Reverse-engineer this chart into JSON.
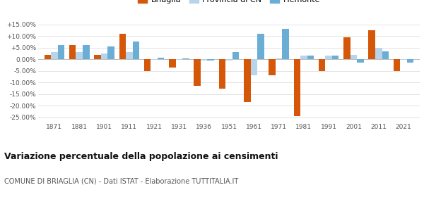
{
  "years": [
    1871,
    1881,
    1901,
    1911,
    1921,
    1931,
    1936,
    1951,
    1961,
    1971,
    1981,
    1991,
    2001,
    2011,
    2021
  ],
  "briaglia": [
    2.0,
    6.0,
    2.0,
    11.0,
    -5.0,
    -3.5,
    -11.5,
    -12.5,
    -18.5,
    -7.0,
    -24.5,
    -5.0,
    9.5,
    12.5,
    -5.0
  ],
  "provincia_cn": [
    3.0,
    3.0,
    2.5,
    3.0,
    -0.2,
    -0.3,
    -0.5,
    -0.5,
    -7.0,
    0.5,
    1.5,
    1.5,
    2.0,
    5.0,
    -0.3
  ],
  "piemonte": [
    6.0,
    6.0,
    5.5,
    7.5,
    0.8,
    0.5,
    -0.5,
    3.0,
    11.0,
    13.0,
    1.5,
    1.5,
    -1.5,
    3.5,
    -1.5
  ],
  "color_briaglia": "#d4570a",
  "color_provincia": "#b8d4ea",
  "color_piemonte": "#6aaed6",
  "title": "Variazione percentuale della popolazione ai censimenti",
  "subtitle": "COMUNE DI BRIAGLIA (CN) - Dati ISTAT - Elaborazione TUTTITALIA.IT",
  "ylim": [
    -27,
    17
  ],
  "yticks": [
    -25.0,
    -20.0,
    -15.0,
    -10.0,
    -5.0,
    0.0,
    5.0,
    10.0,
    15.0
  ],
  "ytick_labels": [
    "-25.00%",
    "-20.00%",
    "-15.00%",
    "-10.00%",
    "-5.00%",
    "0.00%",
    "+5.00%",
    "+10.00%",
    "+15.00%"
  ],
  "background_color": "#ffffff",
  "grid_color": "#dddddd",
  "bar_width": 0.27
}
